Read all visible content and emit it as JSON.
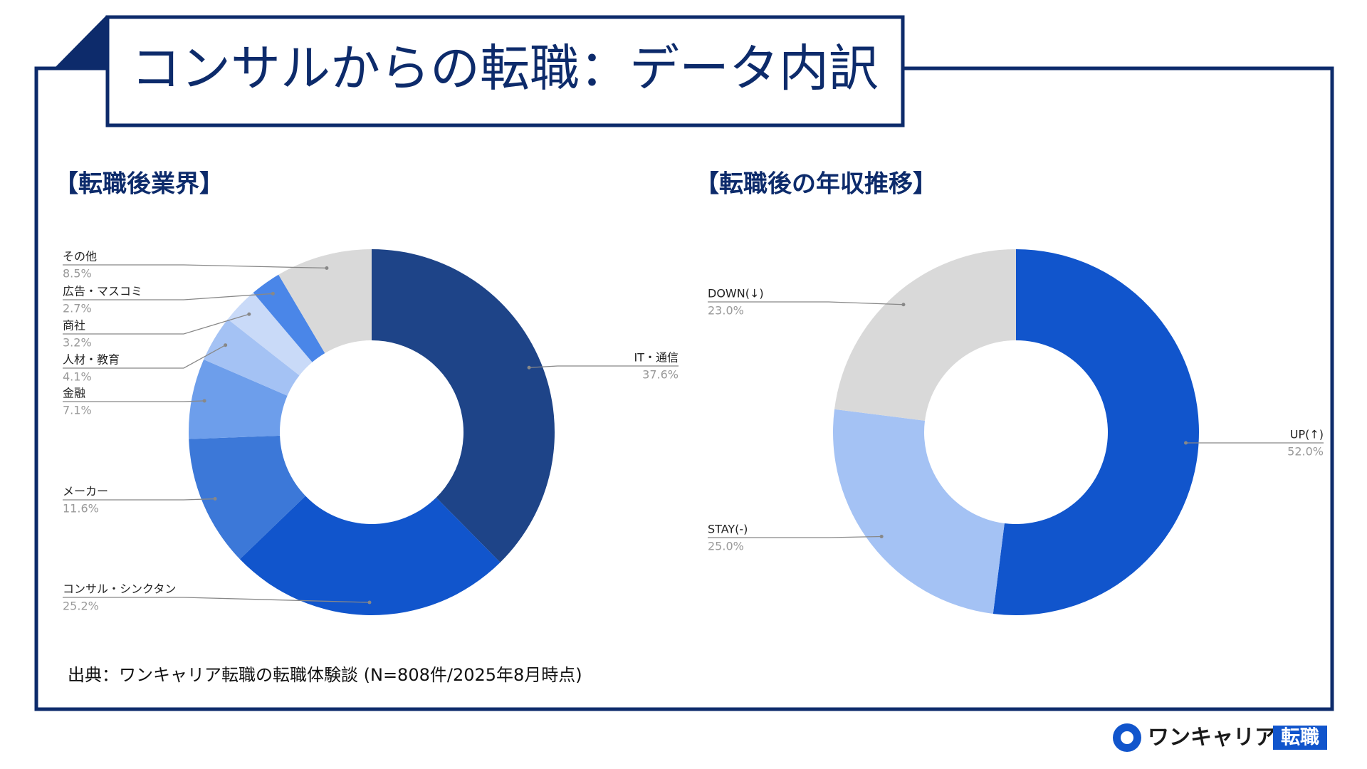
{
  "title": "コンサルからの転職：データ内訳",
  "chart_data": [
    {
      "type": "donut",
      "title": "【転職後業界】",
      "categories": [
        "IT・通信",
        "コンサル・シンクタン",
        "メーカー",
        "金融",
        "人材・教育",
        "商社",
        "広告・マスコミ",
        "その他"
      ],
      "values": [
        37.6,
        25.2,
        11.6,
        7.1,
        4.1,
        3.2,
        2.7,
        8.5
      ],
      "value_labels": [
        "37.6%",
        "25.2%",
        "11.6%",
        "7.1%",
        "4.1%",
        "3.2%",
        "2.7%",
        "8.5%"
      ],
      "colors": [
        "#1e4488",
        "#1155cc",
        "#3c78d8",
        "#6d9eeb",
        "#a4c2f4",
        "#c9daf8",
        "#4a86e8",
        "#d9d9d9"
      ]
    },
    {
      "type": "donut",
      "title": "【転職後の年収推移】",
      "categories": [
        "UP(↑)",
        "STAY(-)",
        "DOWN(↓)"
      ],
      "values": [
        52.0,
        25.0,
        23.0
      ],
      "value_labels": [
        "52.0%",
        "25.0%",
        "23.0%"
      ],
      "colors": [
        "#1155cc",
        "#a4c2f4",
        "#d9d9d9"
      ]
    }
  ],
  "source": "出典：ワンキャリア転職の転職体験談 (N=808件/2025年8月時点)",
  "logo": {
    "name": "ワンキャリア",
    "badge": "転職"
  }
}
